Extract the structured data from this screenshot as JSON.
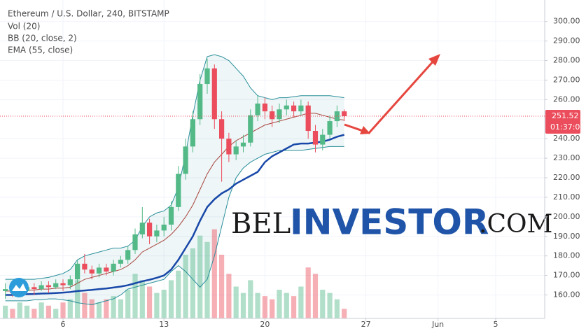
{
  "chart_data": {
    "type": "candlestick",
    "title": "Ethereum / U.S. Dollar, 240, BITSTAMP",
    "indicators": [
      "Vol (20)",
      "BB (20, close, 2)",
      "EMA (55, close)"
    ],
    "x": [
      2,
      2.5,
      3,
      3.5,
      4,
      4.5,
      5,
      5.5,
      6,
      6.5,
      7,
      7.5,
      8,
      8.5,
      9,
      9.5,
      10,
      10.5,
      11,
      11.5,
      12,
      12.5,
      13,
      13.5,
      14,
      14.5,
      15,
      15.5,
      16,
      16.5,
      17,
      17.5,
      18,
      18.5,
      19,
      19.5,
      20,
      20.5,
      21,
      21.5,
      22,
      22.5,
      23,
      23.5,
      24,
      24.5,
      25,
      25.5
    ],
    "open": [
      162,
      163,
      161,
      162,
      164,
      163,
      165,
      164,
      166,
      165,
      168,
      176,
      173,
      171,
      174,
      172,
      176,
      178,
      183,
      191,
      197,
      190,
      193,
      196,
      205,
      222,
      236,
      250,
      268,
      276,
      250,
      240,
      232,
      236,
      238,
      252,
      258,
      254,
      250,
      255,
      257,
      254,
      257,
      244,
      237,
      242,
      249,
      254
    ],
    "high": [
      166,
      164,
      164,
      166,
      166,
      167,
      167,
      168,
      168,
      170,
      178,
      181,
      175,
      176,
      176,
      178,
      180,
      185,
      194,
      205,
      199,
      196,
      200,
      208,
      226,
      240,
      254,
      273,
      281,
      278,
      254,
      243,
      239,
      242,
      255,
      262,
      261,
      257,
      258,
      260,
      259,
      260,
      259,
      247,
      245,
      252,
      257,
      255
    ],
    "low": [
      158,
      159,
      159,
      161,
      160,
      162,
      161,
      163,
      162,
      163,
      166,
      171,
      168,
      169,
      170,
      170,
      174,
      176,
      181,
      189,
      186,
      187,
      190,
      193,
      203,
      219,
      233,
      247,
      263,
      245,
      218,
      228,
      229,
      233,
      236,
      249,
      250,
      246,
      248,
      252,
      251,
      252,
      240,
      233,
      234,
      240,
      246,
      249
    ],
    "close": [
      163,
      161,
      162,
      164,
      163,
      165,
      164,
      166,
      165,
      168,
      176,
      173,
      171,
      174,
      172,
      176,
      178,
      183,
      191,
      197,
      190,
      193,
      196,
      205,
      222,
      236,
      250,
      268,
      276,
      250,
      240,
      232,
      236,
      238,
      252,
      258,
      254,
      250,
      255,
      257,
      254,
      257,
      244,
      237,
      242,
      249,
      254,
      251.52
    ],
    "volume": [
      4,
      3,
      5,
      4,
      3,
      5,
      4,
      3,
      5,
      6,
      12,
      8,
      6,
      5,
      6,
      7,
      6,
      9,
      14,
      12,
      10,
      8,
      9,
      12,
      15,
      20,
      22,
      26,
      24,
      28,
      20,
      14,
      10,
      8,
      12,
      8,
      7,
      6,
      9,
      8,
      7,
      10,
      16,
      14,
      9,
      8,
      6,
      3
    ],
    "bb_upper": [
      168,
      168,
      168,
      168,
      168,
      168.5,
      169,
      170,
      171,
      173,
      178,
      180,
      181,
      182,
      183,
      184,
      184,
      185,
      188,
      195,
      200,
      202,
      203,
      206,
      215,
      232,
      252,
      270,
      282,
      283,
      282,
      280,
      276,
      272,
      266,
      262,
      261,
      260,
      261,
      261,
      261.5,
      262,
      262,
      262,
      262,
      262,
      261.5,
      261
    ],
    "bb_middle": [
      162,
      162,
      162,
      162.5,
      162.5,
      163,
      163,
      163.5,
      163.5,
      164,
      166,
      168,
      169,
      170,
      171,
      172,
      173,
      175,
      178,
      182,
      184,
      186,
      188,
      191,
      195,
      200,
      206,
      214,
      222,
      228,
      232,
      236,
      239,
      241,
      243,
      245,
      247,
      248,
      249,
      250,
      251,
      252,
      253,
      253,
      252,
      251,
      250,
      249.5
    ],
    "bb_lower": [
      157,
      157,
      157,
      157,
      157.5,
      157.5,
      158,
      158,
      157.5,
      157,
      156,
      155.5,
      155,
      156,
      157,
      158,
      160,
      163,
      164,
      165,
      166,
      167,
      168,
      172,
      175,
      172,
      168,
      164,
      168,
      180,
      195,
      210,
      220,
      225,
      228,
      230,
      232,
      233,
      234,
      234,
      234,
      234,
      234.5,
      235,
      235.5,
      236,
      236,
      236
    ],
    "ema": [
      160,
      160,
      160.2,
      160.4,
      160.5,
      160.7,
      160.8,
      161,
      161.2,
      161.5,
      162,
      162.3,
      162.6,
      163,
      163.3,
      163.8,
      164.3,
      165,
      166,
      167,
      167.8,
      168.8,
      170,
      173,
      178,
      184,
      190,
      198,
      205,
      209,
      212,
      214,
      217,
      219,
      221,
      223,
      228,
      231,
      233,
      235,
      237,
      237.5,
      237.5,
      238,
      238.5,
      239.5,
      241,
      242
    ],
    "up_color": "#53b987",
    "down_color": "#eb4d5c",
    "bb_color": "#2a8f9a",
    "bb_middle_color": "#a8453d",
    "ema_color": "#1848a8",
    "last_price": 251.52,
    "countdown": "01:37:04",
    "ylim": [
      148,
      311
    ],
    "yticks": [
      {
        "value": 160,
        "label": "160.00"
      },
      {
        "value": 170,
        "label": "170.00"
      },
      {
        "value": 180,
        "label": "180.00"
      },
      {
        "value": 190,
        "label": "190.00"
      },
      {
        "value": 200,
        "label": "200.00"
      },
      {
        "value": 210,
        "label": "210.00"
      },
      {
        "value": 220,
        "label": "220.00"
      },
      {
        "value": 230,
        "label": "230.00"
      },
      {
        "value": 240,
        "label": "240.00"
      },
      {
        "value": 260,
        "label": "260.00"
      },
      {
        "value": 270,
        "label": "270.00"
      },
      {
        "value": 280,
        "label": "280.00"
      },
      {
        "value": 290,
        "label": "290.00"
      },
      {
        "value": 300,
        "label": "300.00"
      }
    ],
    "xlim": [
      1.63,
      39.4
    ],
    "xticks": [
      6,
      13,
      20,
      27,
      {
        "value": 32,
        "label": "Jun"
      },
      {
        "value": 36,
        "label": "5"
      }
    ],
    "y2lim": [
      0,
      100
    ],
    "grid": true
  },
  "watermark": [
    "BEL",
    "INVESTOR",
    ".COM"
  ]
}
